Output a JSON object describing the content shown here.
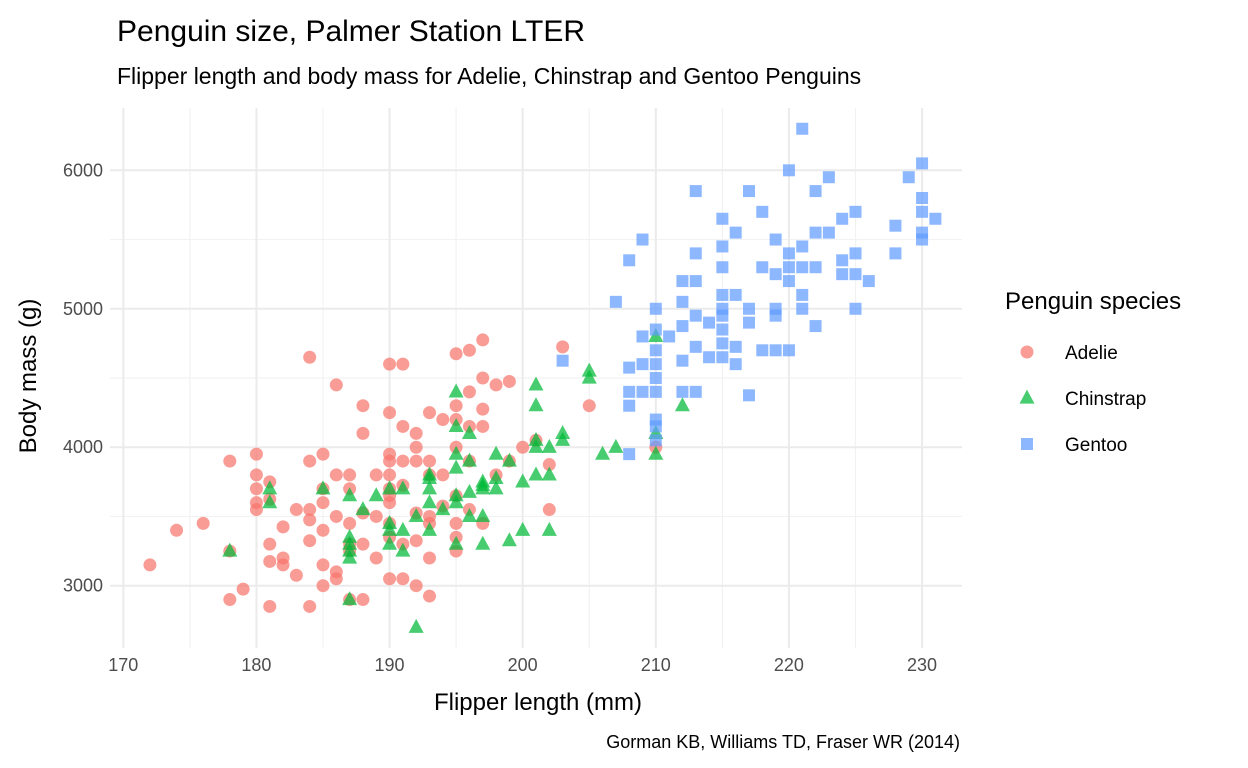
{
  "chart_data": {
    "type": "scatter",
    "title": "Penguin size, Palmer Station LTER",
    "subtitle": "Flipper length and body mass for Adelie, Chinstrap and Gentoo Penguins",
    "xlabel": "Flipper length (mm)",
    "ylabel": "Body mass (g)",
    "caption": "Gorman KB, Williams TD, Fraser WR (2014)",
    "xlim": [
      169,
      233
    ],
    "ylim": [
      2550,
      6450
    ],
    "x_ticks": [
      170,
      180,
      190,
      200,
      210,
      220,
      230
    ],
    "y_ticks": [
      3000,
      4000,
      5000,
      6000
    ],
    "grid": true,
    "legend": {
      "title": "Penguin species",
      "placement": "right"
    },
    "series": [
      {
        "name": "Adelie",
        "color": "#F8766D",
        "shape": "circle",
        "points": [
          [
            172,
            3150
          ],
          [
            174,
            3400
          ],
          [
            176,
            3450
          ],
          [
            178,
            3900
          ],
          [
            178,
            3250
          ],
          [
            178,
            2900
          ],
          [
            179,
            2975
          ],
          [
            180,
            3950
          ],
          [
            180,
            3800
          ],
          [
            180,
            3700
          ],
          [
            180,
            3600
          ],
          [
            180,
            3550
          ],
          [
            181,
            3750
          ],
          [
            181,
            3625
          ],
          [
            181,
            3300
          ],
          [
            181,
            3175
          ],
          [
            181,
            2850
          ],
          [
            182,
            3425
          ],
          [
            182,
            3200
          ],
          [
            182,
            3150
          ],
          [
            183,
            3550
          ],
          [
            183,
            3075
          ],
          [
            184,
            4650
          ],
          [
            184,
            3900
          ],
          [
            184,
            3550
          ],
          [
            184,
            3475
          ],
          [
            184,
            3325
          ],
          [
            184,
            2850
          ],
          [
            185,
            3950
          ],
          [
            185,
            3700
          ],
          [
            185,
            3600
          ],
          [
            185,
            3400
          ],
          [
            185,
            3150
          ],
          [
            185,
            3000
          ],
          [
            186,
            4450
          ],
          [
            186,
            3800
          ],
          [
            186,
            3500
          ],
          [
            186,
            3100
          ],
          [
            186,
            3050
          ],
          [
            187,
            3800
          ],
          [
            187,
            3700
          ],
          [
            187,
            3450
          ],
          [
            187,
            3300
          ],
          [
            187,
            3250
          ],
          [
            187,
            2900
          ],
          [
            188,
            4300
          ],
          [
            188,
            4100
          ],
          [
            188,
            3525
          ],
          [
            188,
            3300
          ],
          [
            188,
            2900
          ],
          [
            189,
            3800
          ],
          [
            189,
            3500
          ],
          [
            189,
            3200
          ],
          [
            190,
            4600
          ],
          [
            190,
            4250
          ],
          [
            190,
            3950
          ],
          [
            190,
            3900
          ],
          [
            190,
            3800
          ],
          [
            190,
            3700
          ],
          [
            190,
            3650
          ],
          [
            190,
            3600
          ],
          [
            190,
            3450
          ],
          [
            190,
            3350
          ],
          [
            190,
            3050
          ],
          [
            191,
            4600
          ],
          [
            191,
            4150
          ],
          [
            191,
            3900
          ],
          [
            191,
            3725
          ],
          [
            191,
            3300
          ],
          [
            191,
            3050
          ],
          [
            192,
            4100
          ],
          [
            192,
            4000
          ],
          [
            192,
            3900
          ],
          [
            192,
            3525
          ],
          [
            192,
            3325
          ],
          [
            192,
            3000
          ],
          [
            193,
            4250
          ],
          [
            193,
            3900
          ],
          [
            193,
            3800
          ],
          [
            193,
            3500
          ],
          [
            193,
            3450
          ],
          [
            193,
            3200
          ],
          [
            193,
            2925
          ],
          [
            194,
            4200
          ],
          [
            194,
            3800
          ],
          [
            194,
            3575
          ],
          [
            195,
            4675
          ],
          [
            195,
            4300
          ],
          [
            195,
            4200
          ],
          [
            195,
            4000
          ],
          [
            195,
            3650
          ],
          [
            195,
            3450
          ],
          [
            195,
            3350
          ],
          [
            195,
            3250
          ],
          [
            196,
            4700
          ],
          [
            196,
            4400
          ],
          [
            196,
            4150
          ],
          [
            196,
            3900
          ],
          [
            196,
            3550
          ],
          [
            197,
            4775
          ],
          [
            197,
            4500
          ],
          [
            197,
            4275
          ],
          [
            197,
            4150
          ],
          [
            197,
            3450
          ],
          [
            198,
            4450
          ],
          [
            198,
            3800
          ],
          [
            199,
            4475
          ],
          [
            199,
            3900
          ],
          [
            200,
            4000
          ],
          [
            201,
            4050
          ],
          [
            202,
            3875
          ],
          [
            202,
            3550
          ],
          [
            203,
            4725
          ],
          [
            205,
            4300
          ],
          [
            210,
            4000
          ]
        ]
      },
      {
        "name": "Chinstrap",
        "color": "#00BA38",
        "shape": "triangle",
        "points": [
          [
            178,
            3250
          ],
          [
            181,
            3700
          ],
          [
            181,
            3600
          ],
          [
            185,
            3700
          ],
          [
            187,
            3650
          ],
          [
            187,
            3350
          ],
          [
            187,
            3300
          ],
          [
            187,
            3250
          ],
          [
            187,
            3200
          ],
          [
            187,
            2900
          ],
          [
            188,
            3550
          ],
          [
            189,
            3650
          ],
          [
            190,
            3700
          ],
          [
            190,
            3450
          ],
          [
            190,
            3400
          ],
          [
            190,
            3300
          ],
          [
            191,
            3700
          ],
          [
            191,
            3400
          ],
          [
            191,
            3250
          ],
          [
            192,
            3500
          ],
          [
            192,
            2700
          ],
          [
            193,
            3800
          ],
          [
            193,
            3775
          ],
          [
            193,
            3700
          ],
          [
            193,
            3600
          ],
          [
            193,
            3400
          ],
          [
            194,
            3550
          ],
          [
            195,
            4400
          ],
          [
            195,
            4150
          ],
          [
            195,
            3950
          ],
          [
            195,
            3850
          ],
          [
            195,
            3650
          ],
          [
            195,
            3600
          ],
          [
            195,
            3300
          ],
          [
            196,
            4100
          ],
          [
            196,
            3900
          ],
          [
            196,
            3675
          ],
          [
            196,
            3500
          ],
          [
            197,
            3750
          ],
          [
            197,
            3725
          ],
          [
            197,
            3700
          ],
          [
            197,
            3500
          ],
          [
            197,
            3300
          ],
          [
            198,
            3950
          ],
          [
            198,
            3775
          ],
          [
            198,
            3700
          ],
          [
            199,
            3900
          ],
          [
            199,
            3325
          ],
          [
            200,
            3750
          ],
          [
            200,
            3400
          ],
          [
            201,
            4450
          ],
          [
            201,
            4300
          ],
          [
            201,
            4050
          ],
          [
            201,
            4000
          ],
          [
            201,
            3800
          ],
          [
            202,
            4000
          ],
          [
            202,
            3800
          ],
          [
            202,
            3400
          ],
          [
            203,
            4100
          ],
          [
            203,
            4050
          ],
          [
            205,
            4550
          ],
          [
            205,
            4500
          ],
          [
            206,
            3950
          ],
          [
            207,
            4000
          ],
          [
            210,
            4800
          ],
          [
            210,
            4100
          ],
          [
            210,
            3950
          ],
          [
            212,
            4300
          ]
        ]
      },
      {
        "name": "Gentoo",
        "color": "#619CFF",
        "shape": "square",
        "points": [
          [
            203,
            4625
          ],
          [
            207,
            5050
          ],
          [
            208,
            5350
          ],
          [
            208,
            4575
          ],
          [
            208,
            4400
          ],
          [
            208,
            4300
          ],
          [
            208,
            3950
          ],
          [
            209,
            5500
          ],
          [
            209,
            4800
          ],
          [
            209,
            4600
          ],
          [
            209,
            4400
          ],
          [
            210,
            5000
          ],
          [
            210,
            4850
          ],
          [
            210,
            4700
          ],
          [
            210,
            4600
          ],
          [
            210,
            4500
          ],
          [
            210,
            4400
          ],
          [
            210,
            4200
          ],
          [
            210,
            4150
          ],
          [
            210,
            4050
          ],
          [
            211,
            4800
          ],
          [
            212,
            5200
          ],
          [
            212,
            5050
          ],
          [
            212,
            4875
          ],
          [
            212,
            4625
          ],
          [
            212,
            4400
          ],
          [
            213,
            5850
          ],
          [
            213,
            5400
          ],
          [
            213,
            5200
          ],
          [
            213,
            4950
          ],
          [
            213,
            4725
          ],
          [
            213,
            4400
          ],
          [
            214,
            4900
          ],
          [
            214,
            4650
          ],
          [
            215,
            5650
          ],
          [
            215,
            5450
          ],
          [
            215,
            5300
          ],
          [
            215,
            5100
          ],
          [
            215,
            5000
          ],
          [
            215,
            4950
          ],
          [
            215,
            4850
          ],
          [
            215,
            4750
          ],
          [
            215,
            4650
          ],
          [
            216,
            5550
          ],
          [
            216,
            5100
          ],
          [
            216,
            4725
          ],
          [
            216,
            4600
          ],
          [
            217,
            5850
          ],
          [
            217,
            5000
          ],
          [
            217,
            4900
          ],
          [
            217,
            4375
          ],
          [
            218,
            5700
          ],
          [
            218,
            5300
          ],
          [
            218,
            4700
          ],
          [
            219,
            5500
          ],
          [
            219,
            5250
          ],
          [
            219,
            5000
          ],
          [
            219,
            4950
          ],
          [
            219,
            4700
          ],
          [
            220,
            6000
          ],
          [
            220,
            5400
          ],
          [
            220,
            5300
          ],
          [
            220,
            5200
          ],
          [
            220,
            4700
          ],
          [
            221,
            6300
          ],
          [
            221,
            5450
          ],
          [
            221,
            5300
          ],
          [
            221,
            5100
          ],
          [
            221,
            5000
          ],
          [
            222,
            5850
          ],
          [
            222,
            5550
          ],
          [
            222,
            5300
          ],
          [
            222,
            4875
          ],
          [
            223,
            5950
          ],
          [
            223,
            5550
          ],
          [
            224,
            5650
          ],
          [
            224,
            5350
          ],
          [
            224,
            5250
          ],
          [
            225,
            5700
          ],
          [
            225,
            5400
          ],
          [
            225,
            5250
          ],
          [
            225,
            5000
          ],
          [
            226,
            5200
          ],
          [
            228,
            5600
          ],
          [
            228,
            5400
          ],
          [
            229,
            5950
          ],
          [
            230,
            6050
          ],
          [
            230,
            5800
          ],
          [
            230,
            5700
          ],
          [
            230,
            5550
          ],
          [
            230,
            5500
          ],
          [
            231,
            5650
          ]
        ]
      }
    ]
  }
}
